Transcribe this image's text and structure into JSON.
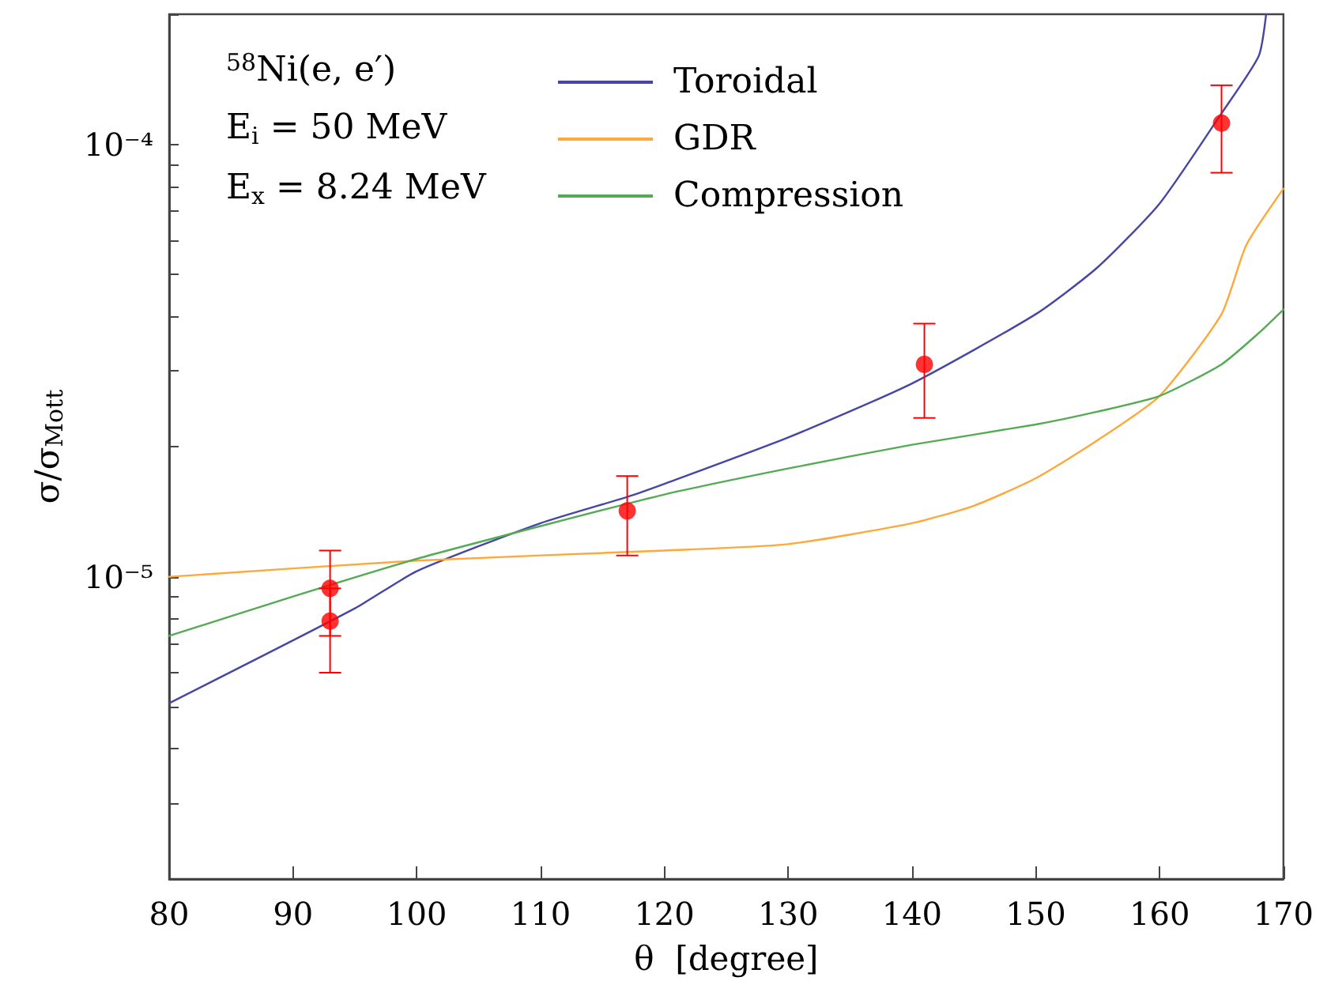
{
  "chart_data": {
    "type": "line",
    "xlabel": "θ  [degree]",
    "ylabel": "σ/σ$_{Mott}$",
    "annotations": [
      "$^{58}$Ni(e, e′)",
      "E$_{i}$ = 50 MeV",
      "E$_{x}$ = 8.24 MeV"
    ],
    "xlim": [
      80,
      170
    ],
    "xticks": [
      80,
      90,
      100,
      110,
      120,
      130,
      140,
      150,
      160,
      170
    ],
    "ylim": [
      2e-06,
      0.0002
    ],
    "log": "y",
    "yticks": [
      {
        "value": 2e-06,
        "label": null
      },
      {
        "value": 3e-06,
        "label": null
      },
      {
        "value": 4e-06,
        "label": null
      },
      {
        "value": 5e-06,
        "label": null
      },
      {
        "value": 6e-06,
        "label": null
      },
      {
        "value": 7e-06,
        "label": null
      },
      {
        "value": 8e-06,
        "label": null
      },
      {
        "value": 9e-06,
        "label": null
      },
      {
        "value": 1e-05,
        "label": "10⁻⁵"
      },
      {
        "value": 2e-05,
        "label": null
      },
      {
        "value": 3e-05,
        "label": null
      },
      {
        "value": 4e-05,
        "label": null
      },
      {
        "value": 5e-05,
        "label": null
      },
      {
        "value": 6e-05,
        "label": null
      },
      {
        "value": 7e-05,
        "label": null
      },
      {
        "value": 8e-05,
        "label": null
      },
      {
        "value": 9e-05,
        "label": null
      },
      {
        "value": 0.0001,
        "label": "10⁻⁴"
      },
      {
        "value": 0.0002,
        "label": null
      }
    ],
    "grid": false,
    "legend": "top",
    "line_style": "solid",
    "series": [
      {
        "name": "Toroidal",
        "marker": "none",
        "color": "#4646a6",
        "x": [
          80,
          95,
          100,
          110,
          117,
          120,
          130,
          140,
          150,
          155,
          160,
          165,
          168,
          168.6
        ],
        "values": [
          5.1e-06,
          8.45e-06,
          1.03e-05,
          1.33e-05,
          1.53e-05,
          1.64e-05,
          2.1e-05,
          2.8e-05,
          4.05e-05,
          5.2e-05,
          7.3e-05,
          0.000118,
          0.00016,
          0.0002
        ]
      },
      {
        "name": "GDR",
        "marker": "none",
        "color": "#ffa83a",
        "x": [
          80,
          100,
          120,
          130,
          140,
          145,
          150,
          155,
          160,
          165,
          167,
          170
        ],
        "values": [
          1e-05,
          1.09e-05,
          1.15e-05,
          1.19e-05,
          1.33e-05,
          1.46e-05,
          1.69e-05,
          2.07e-05,
          2.62e-05,
          4.05e-05,
          5.85e-05,
          7.9e-05
        ]
      },
      {
        "name": "Compression",
        "marker": "none",
        "color": "#55aa55",
        "x": [
          80,
          90,
          100,
          110,
          120,
          130,
          140,
          150,
          155,
          160,
          165,
          168,
          170
        ],
        "values": [
          7.3e-06,
          9e-06,
          1.1e-05,
          1.31e-05,
          1.55e-05,
          1.78e-05,
          2.02e-05,
          2.25e-05,
          2.41e-05,
          2.62e-05,
          3.1e-05,
          3.66e-05,
          4.15e-05
        ]
      },
      {
        "type": "scatter",
        "marker": "circle",
        "color": "#ff0000",
        "x": [
          93,
          93,
          117,
          141,
          165
        ],
        "values": [
          9.4e-06,
          7.9e-06,
          1.42e-05,
          3.1e-05,
          0.000112
        ],
        "errors": [
          [
            7.3e-06,
            1.15e-05
          ],
          [
            6e-06,
            9.4e-06
          ],
          [
            1.12e-05,
            1.71e-05
          ],
          [
            2.33e-05,
            3.85e-05
          ],
          [
            8.6e-05,
            0.000137
          ]
        ]
      }
    ]
  }
}
